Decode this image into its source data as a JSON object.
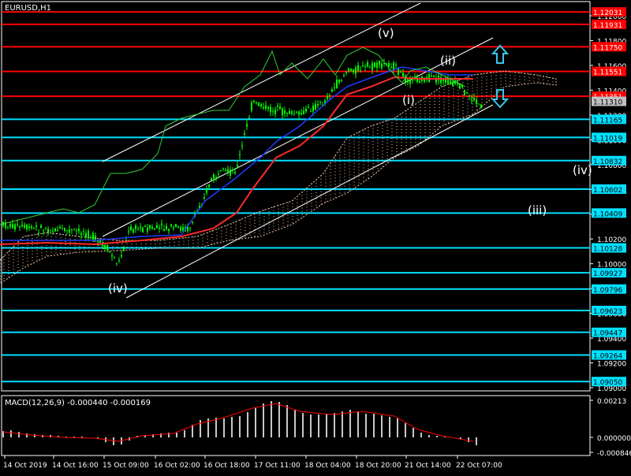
{
  "symbol_label": "EURUSD,H1",
  "colors": {
    "background": "#000000",
    "axis": "#FFFFFF",
    "grid_axis_text": "#FFFFFF",
    "red_levels": "#FF0000",
    "cyan_levels": "#00E0FF",
    "candle": "#00FF00",
    "ma_red": "#FF2A2A",
    "ma_blue": "#1E3CFF",
    "lime_line": "#32CD32",
    "cloud": "#F4C7A8",
    "channel": "#FFFFFF",
    "arrow": "#39C7E8",
    "macd_hist": "#C8C8C8",
    "macd_signal": "#FF0000",
    "current_price_bg": "#C0C0C0"
  },
  "wave_labels": {
    "v": "(v)",
    "ii": "(ii)",
    "i": "(i)",
    "iv_left": "(iv)",
    "iv_right": "(iv)",
    "iii": "(iii)"
  },
  "macd": {
    "label": "MACD(12,26,9) -0.000440 -0.000169",
    "axis_labels": [
      "0.00213",
      "0.000000",
      "-0.000846"
    ]
  },
  "time_axis": [
    "14 Oct 2019",
    "14 Oct 16:00",
    "15 Oct 09:00",
    "16 Oct 02:00",
    "16 Oct 18:00",
    "17 Oct 11:00",
    "18 Oct 04:00",
    "18 Oct 20:00",
    "21 Oct 14:00",
    "22 Oct 07:00"
  ],
  "price_axis_ticks": [
    "1.12000",
    "1.11800",
    "1.11600",
    "1.11400",
    "1.11200",
    "1.11000",
    "1.10800",
    "1.10600",
    "1.10400",
    "1.10200",
    "1.10000",
    "1.09800",
    "1.09600",
    "1.09400",
    "1.09200",
    "1.09000"
  ],
  "price_levels": [
    {
      "value": "1.12031",
      "kind": "red"
    },
    {
      "value": "1.11931",
      "kind": "red"
    },
    {
      "value": "1.11750",
      "kind": "red"
    },
    {
      "value": "1.11551",
      "kind": "red"
    },
    {
      "value": "1.11351",
      "kind": "red"
    },
    {
      "value": "1.11310",
      "kind": "current"
    },
    {
      "value": "1.11165",
      "kind": "cyan"
    },
    {
      "value": "1.11019",
      "kind": "cyan"
    },
    {
      "value": "1.10832",
      "kind": "cyan"
    },
    {
      "value": "1.10602",
      "kind": "cyan"
    },
    {
      "value": "1.10409",
      "kind": "cyan"
    },
    {
      "value": "1.10128",
      "kind": "cyan"
    },
    {
      "value": "1.09927",
      "kind": "cyan"
    },
    {
      "value": "1.09796",
      "kind": "cyan"
    },
    {
      "value": "1.09623",
      "kind": "cyan"
    },
    {
      "value": "1.09447",
      "kind": "cyan"
    },
    {
      "value": "1.09264",
      "kind": "cyan"
    },
    {
      "value": "1.09050",
      "kind": "cyan"
    }
  ]
}
